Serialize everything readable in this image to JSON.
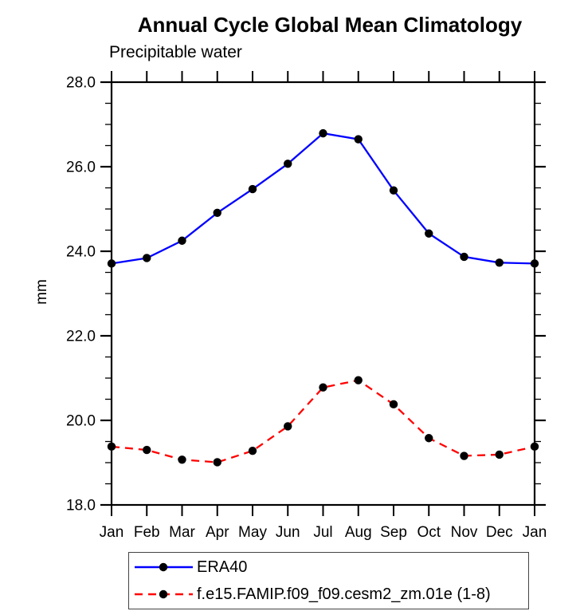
{
  "figure": {
    "title": "Annual Cycle Global Mean Climatology",
    "subtitle": "Precipitable water",
    "ylabel": "mm"
  },
  "chart_data": {
    "type": "line",
    "title": "Annual Cycle Global Mean Climatology",
    "subtitle": "Precipitable water",
    "ylabel": "mm",
    "categories": [
      "Jan",
      "Feb",
      "Mar",
      "Apr",
      "May",
      "Jun",
      "Jul",
      "Aug",
      "Sep",
      "Oct",
      "Nov",
      "Dec",
      "Jan"
    ],
    "series": [
      {
        "name": "ERA40",
        "color": "#0000ff",
        "line_style": "solid",
        "values": [
          23.71,
          23.84,
          24.25,
          24.91,
          25.47,
          26.07,
          26.79,
          26.65,
          25.44,
          24.42,
          23.87,
          23.73,
          23.71
        ]
      },
      {
        "name": "f.e15.FAMIP.f09_f09.cesm2_zm.01e (1-8)",
        "color": "#ff0000",
        "line_style": "dashed",
        "values": [
          19.38,
          19.3,
          19.07,
          19.01,
          19.28,
          19.86,
          20.78,
          20.95,
          20.38,
          19.58,
          19.16,
          19.19,
          19.38
        ]
      }
    ],
    "marker_color": "#000000",
    "axis_color": "#000000",
    "ylim": [
      18.0,
      28.0
    ],
    "ytick_step": 2.0,
    "yminor_step": 0.5,
    "ytick_labels": [
      "18.0",
      "20.0",
      "22.0",
      "24.0",
      "26.0",
      "28.0"
    ],
    "grid": "off",
    "legend_position": "bottom"
  }
}
